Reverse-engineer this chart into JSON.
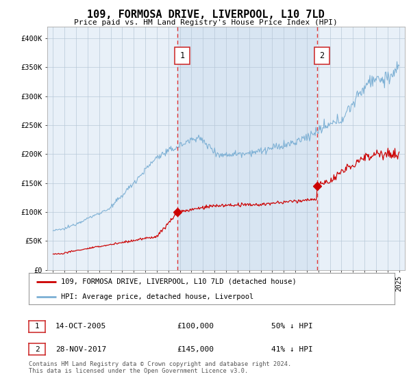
{
  "title": "109, FORMOSA DRIVE, LIVERPOOL, L10 7LD",
  "subtitle": "Price paid vs. HM Land Registry's House Price Index (HPI)",
  "background_color": "#ffffff",
  "plot_bg_color": "#e8f0f8",
  "hpi_color": "#7bafd4",
  "price_color": "#cc0000",
  "marker_color": "#cc0000",
  "dashed_line_color": "#dd3333",
  "sale1_year": 2005.79,
  "sale1_price": 100000,
  "sale1_label": "1",
  "sale1_date": "14-OCT-2005",
  "sale1_pct": "50% ↓ HPI",
  "sale2_year": 2017.91,
  "sale2_price": 145000,
  "sale2_label": "2",
  "sale2_date": "28-NOV-2017",
  "sale2_pct": "41% ↓ HPI",
  "legend_house": "109, FORMOSA DRIVE, LIVERPOOL, L10 7LD (detached house)",
  "legend_hpi": "HPI: Average price, detached house, Liverpool",
  "footer": "Contains HM Land Registry data © Crown copyright and database right 2024.\nThis data is licensed under the Open Government Licence v3.0.",
  "ylim": [
    0,
    420000
  ],
  "xlim_start": 1994.5,
  "xlim_end": 2025.5,
  "yticks": [
    0,
    50000,
    100000,
    150000,
    200000,
    250000,
    300000,
    350000,
    400000
  ],
  "ytick_labels": [
    "£0",
    "£50K",
    "£100K",
    "£150K",
    "£200K",
    "£250K",
    "£300K",
    "£350K",
    "£400K"
  ],
  "xticks": [
    1995,
    1996,
    1997,
    1998,
    1999,
    2000,
    2001,
    2002,
    2003,
    2004,
    2005,
    2006,
    2007,
    2008,
    2009,
    2010,
    2011,
    2012,
    2013,
    2014,
    2015,
    2016,
    2017,
    2018,
    2019,
    2020,
    2021,
    2022,
    2023,
    2024,
    2025
  ]
}
